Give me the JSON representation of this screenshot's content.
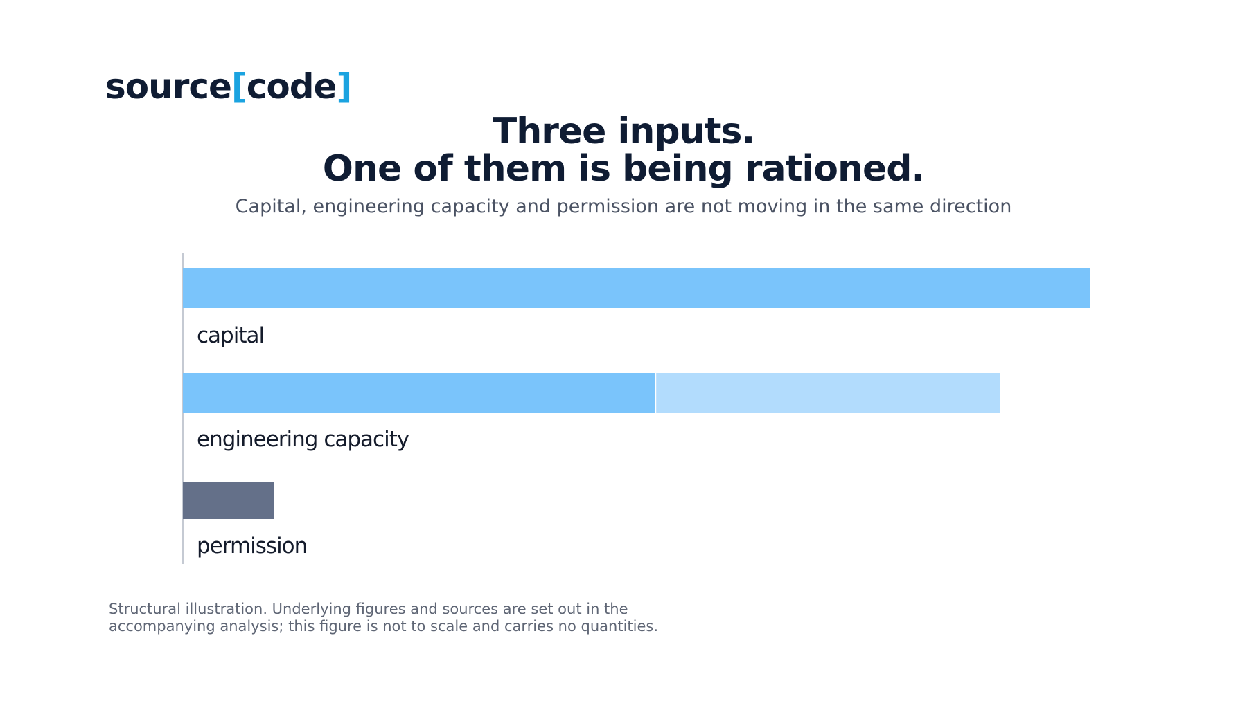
{
  "logo": {
    "word": "source",
    "open_bracket": "[",
    "inner": "code",
    "close_bracket": "]"
  },
  "title_line1": "Three inputs.",
  "title_line2": "One of them is being rationed.",
  "subtitle": "Capital, engineering capacity and permission are not moving in the same direction",
  "footnote_line1": "Structural illustration. Underlying figures and sources are set out in the",
  "footnote_line2": "accompanying analysis; this figure is not to scale and carries no quantities.",
  "colors": {
    "primary_bar": "#7ac4fb",
    "secondary_bar": "#b2dcfd",
    "permission_bar": "#647089",
    "axis": "#c5cad3",
    "label": "#141b2b",
    "title": "#0f1c33",
    "logo_bracket": "#1ba3e0"
  },
  "chart_data": {
    "type": "bar",
    "orientation": "horizontal",
    "stacked": true,
    "categories": [
      "capital",
      "engineering capacity",
      "permission"
    ],
    "series": [
      {
        "values": [
          100,
          52,
          10
        ]
      },
      {
        "values": [
          0,
          38,
          0
        ]
      }
    ],
    "xlim": [
      0,
      100
    ],
    "grid": false,
    "legend": "none",
    "axis_ticks": false
  }
}
